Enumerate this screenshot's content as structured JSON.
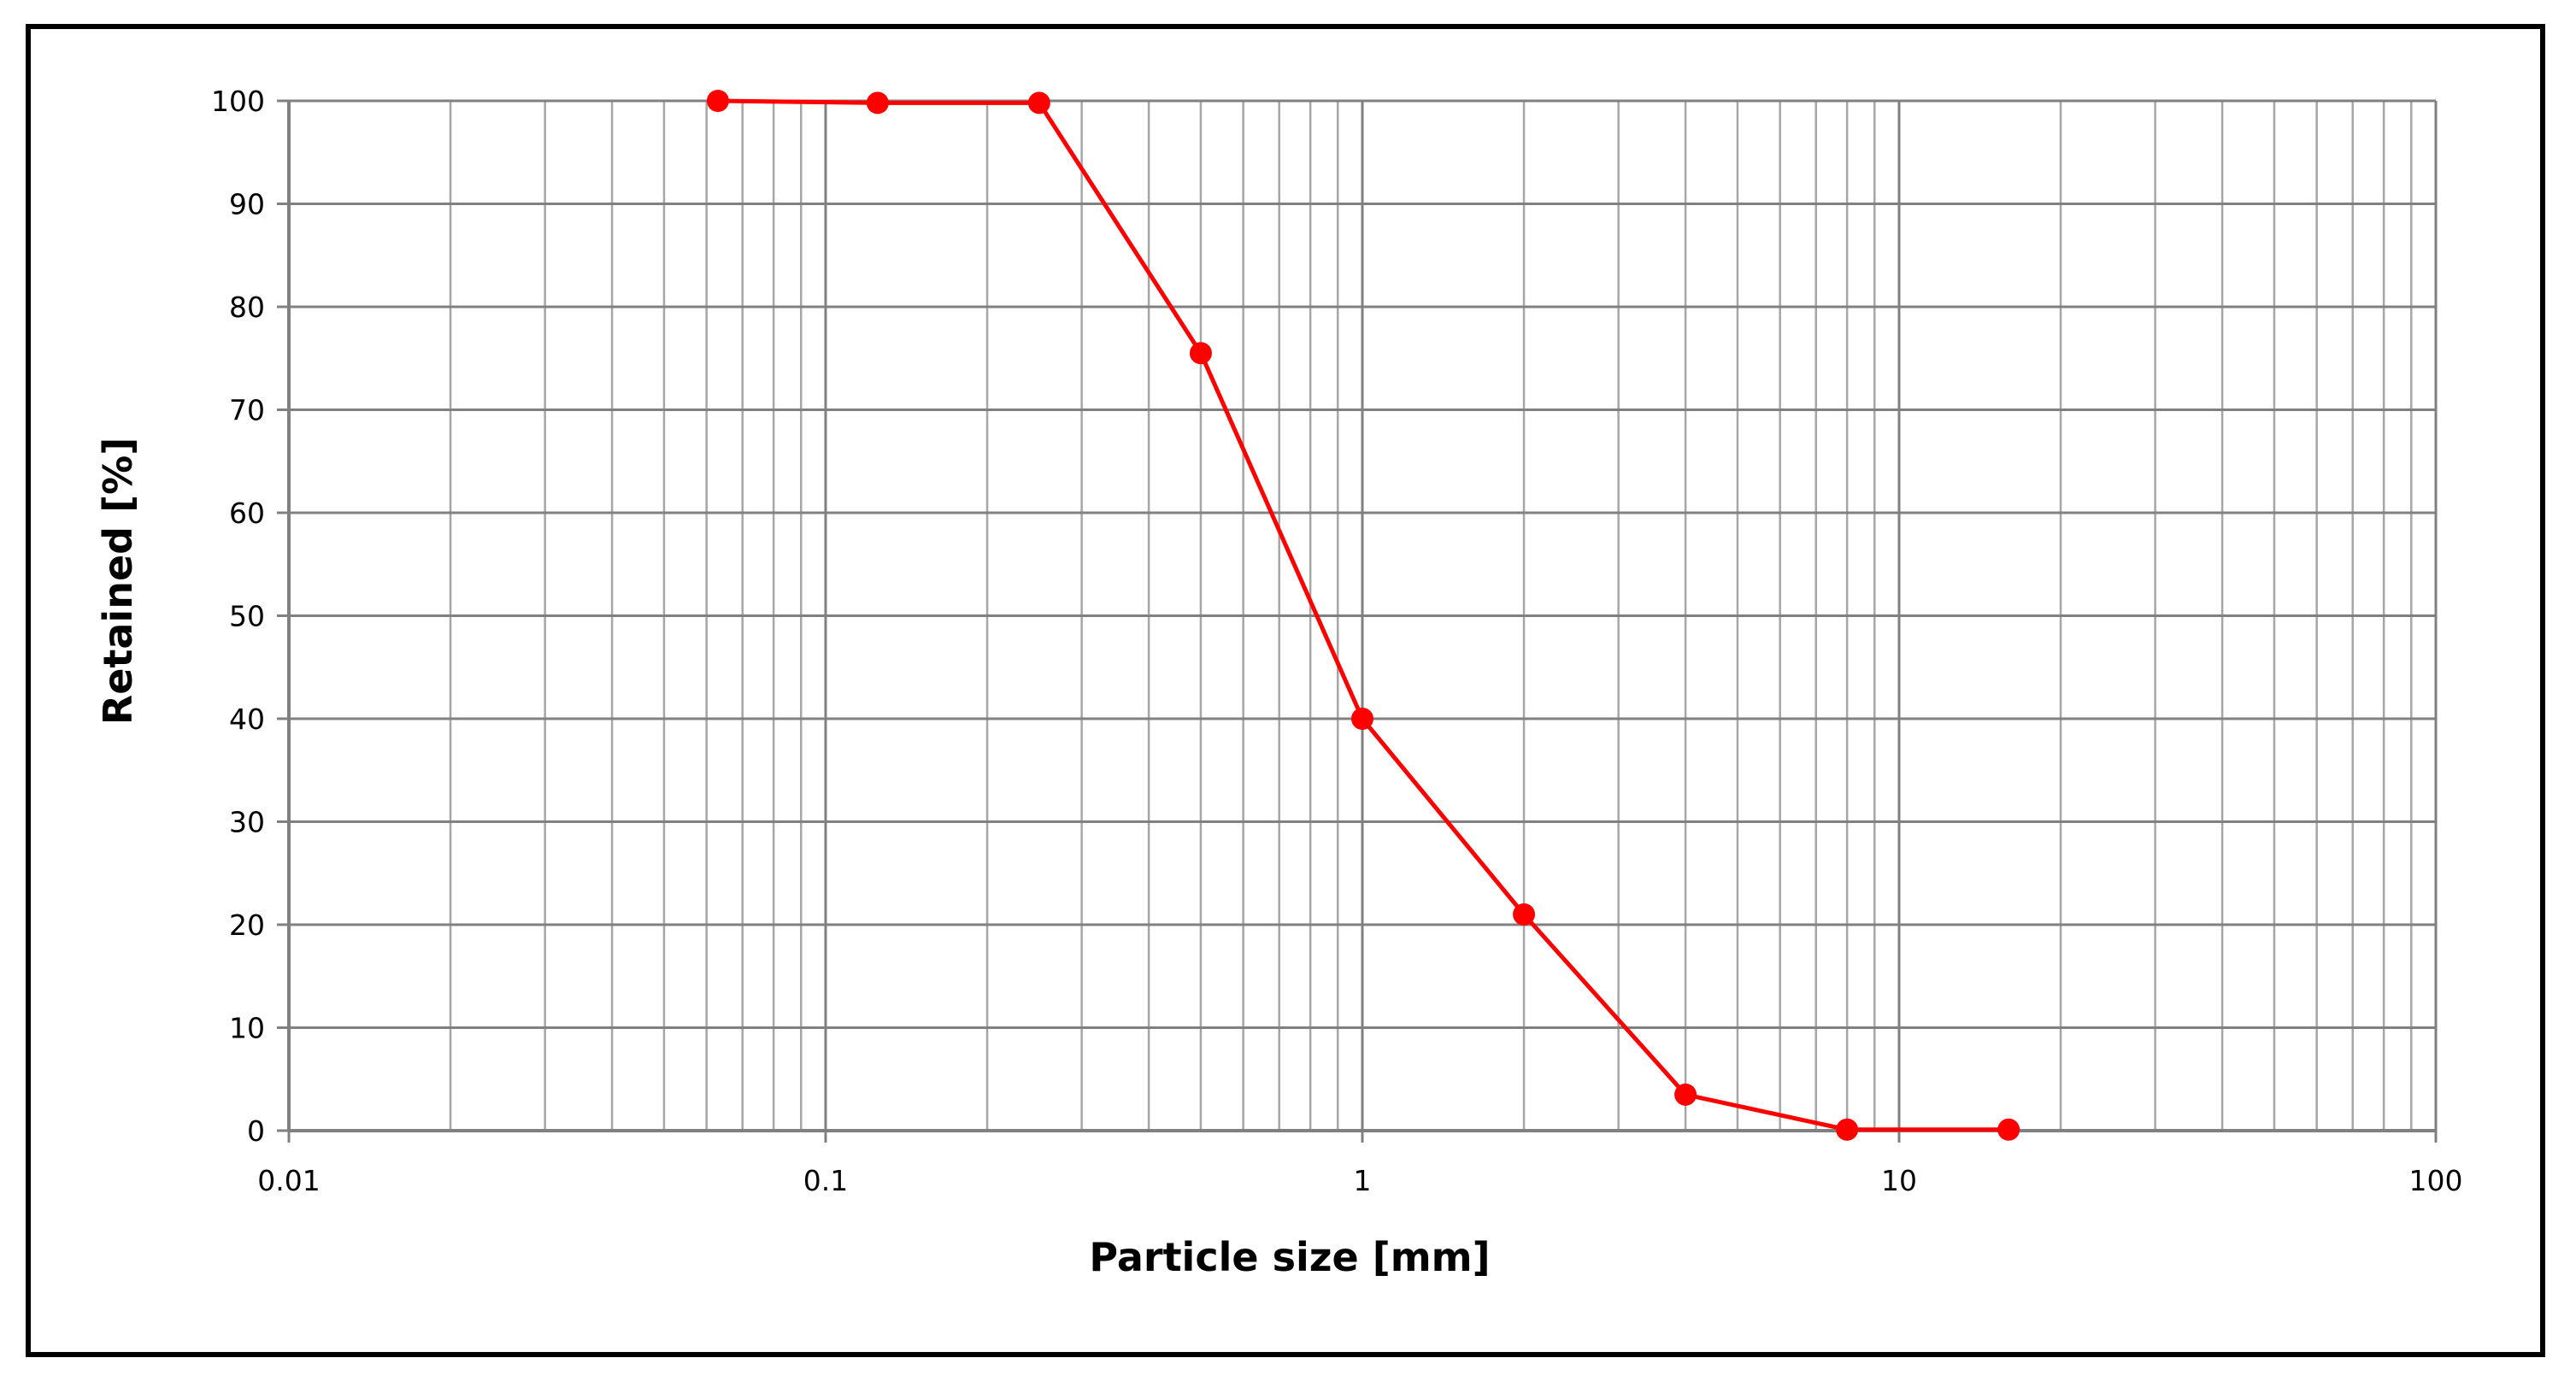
{
  "chart_data": {
    "type": "line",
    "title": "",
    "xlabel": "Particle size [mm]",
    "ylabel": "Retained [%]",
    "x_scale": "log",
    "xlim": [
      0.01,
      100
    ],
    "ylim": [
      0,
      100
    ],
    "x_ticks": [
      {
        "value": 0.01,
        "label": "0.01"
      },
      {
        "value": 0.1,
        "label": "0.1"
      },
      {
        "value": 1,
        "label": "1"
      },
      {
        "value": 10,
        "label": "10"
      },
      {
        "value": 100,
        "label": "100"
      }
    ],
    "y_ticks": [
      {
        "value": 0,
        "label": "0"
      },
      {
        "value": 10,
        "label": "10"
      },
      {
        "value": 20,
        "label": "20"
      },
      {
        "value": 30,
        "label": "30"
      },
      {
        "value": 40,
        "label": "40"
      },
      {
        "value": 50,
        "label": "50"
      },
      {
        "value": 60,
        "label": "60"
      },
      {
        "value": 70,
        "label": "70"
      },
      {
        "value": 80,
        "label": "80"
      },
      {
        "value": 90,
        "label": "90"
      },
      {
        "value": 100,
        "label": "100"
      }
    ],
    "grid": true,
    "legend": "none",
    "series": [
      {
        "color": "#ff0000",
        "x": [
          0.063,
          0.125,
          0.25,
          0.5,
          1,
          2,
          4,
          8,
          16
        ],
        "y": [
          100,
          99.8,
          99.8,
          75.5,
          40,
          21,
          3.5,
          0.1,
          0.1
        ]
      }
    ]
  },
  "colors": {
    "grid_major": "#808080",
    "grid_minor": "#a6a6a6",
    "axis": "#808080",
    "frame": "#000000"
  }
}
